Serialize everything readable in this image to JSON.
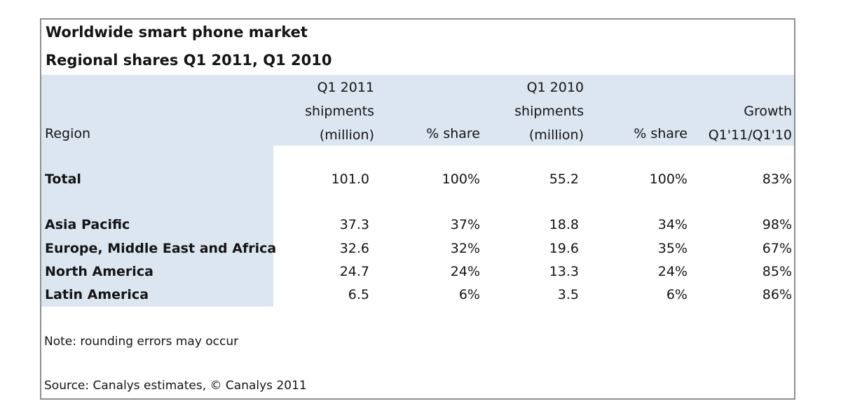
{
  "title": "Worldwide smart phone market",
  "subtitle": "Regional shares Q1 2011, Q1 2010",
  "headers": {
    "region": "Region",
    "q1_2011_shipments": [
      "Q1 2011",
      "shipments",
      "(million)"
    ],
    "q1_2011_share": "% share",
    "q1_2010_shipments": [
      "Q1 2010",
      "shipments",
      "(million)"
    ],
    "q1_2010_share": "% share",
    "growth": [
      "Growth",
      "Q1'11/Q1'10"
    ]
  },
  "total": {
    "region": "Total",
    "q1_2011_shipments": "101.0",
    "q1_2011_share": "100%",
    "q1_2010_shipments": "55.2",
    "q1_2010_share": "100%",
    "growth": "83%"
  },
  "rows": [
    {
      "region": "Asia Pacific",
      "q1_2011_shipments": "37.3",
      "q1_2011_share": "37%",
      "q1_2010_shipments": "18.8",
      "q1_2010_share": "34%",
      "growth": "98%"
    },
    {
      "region": "Europe, Middle East and Africa",
      "q1_2011_shipments": "32.6",
      "q1_2011_share": "32%",
      "q1_2010_shipments": "19.6",
      "q1_2010_share": "35%",
      "growth": "67%"
    },
    {
      "region": "North America",
      "q1_2011_shipments": "24.7",
      "q1_2011_share": "24%",
      "q1_2010_shipments": "13.3",
      "q1_2010_share": "24%",
      "growth": "85%"
    },
    {
      "region": "Latin America",
      "q1_2011_shipments": "6.5",
      "q1_2011_share": "6%",
      "q1_2010_shipments": "3.5",
      "q1_2010_share": "6%",
      "growth": "86%"
    }
  ],
  "note": "Note: rounding errors may occur",
  "source": "Source: Canalys estimates, © Canalys 2011",
  "colors": {
    "header_band": "#dce6f1",
    "border": "#8f8f8f",
    "text": "#141414"
  }
}
